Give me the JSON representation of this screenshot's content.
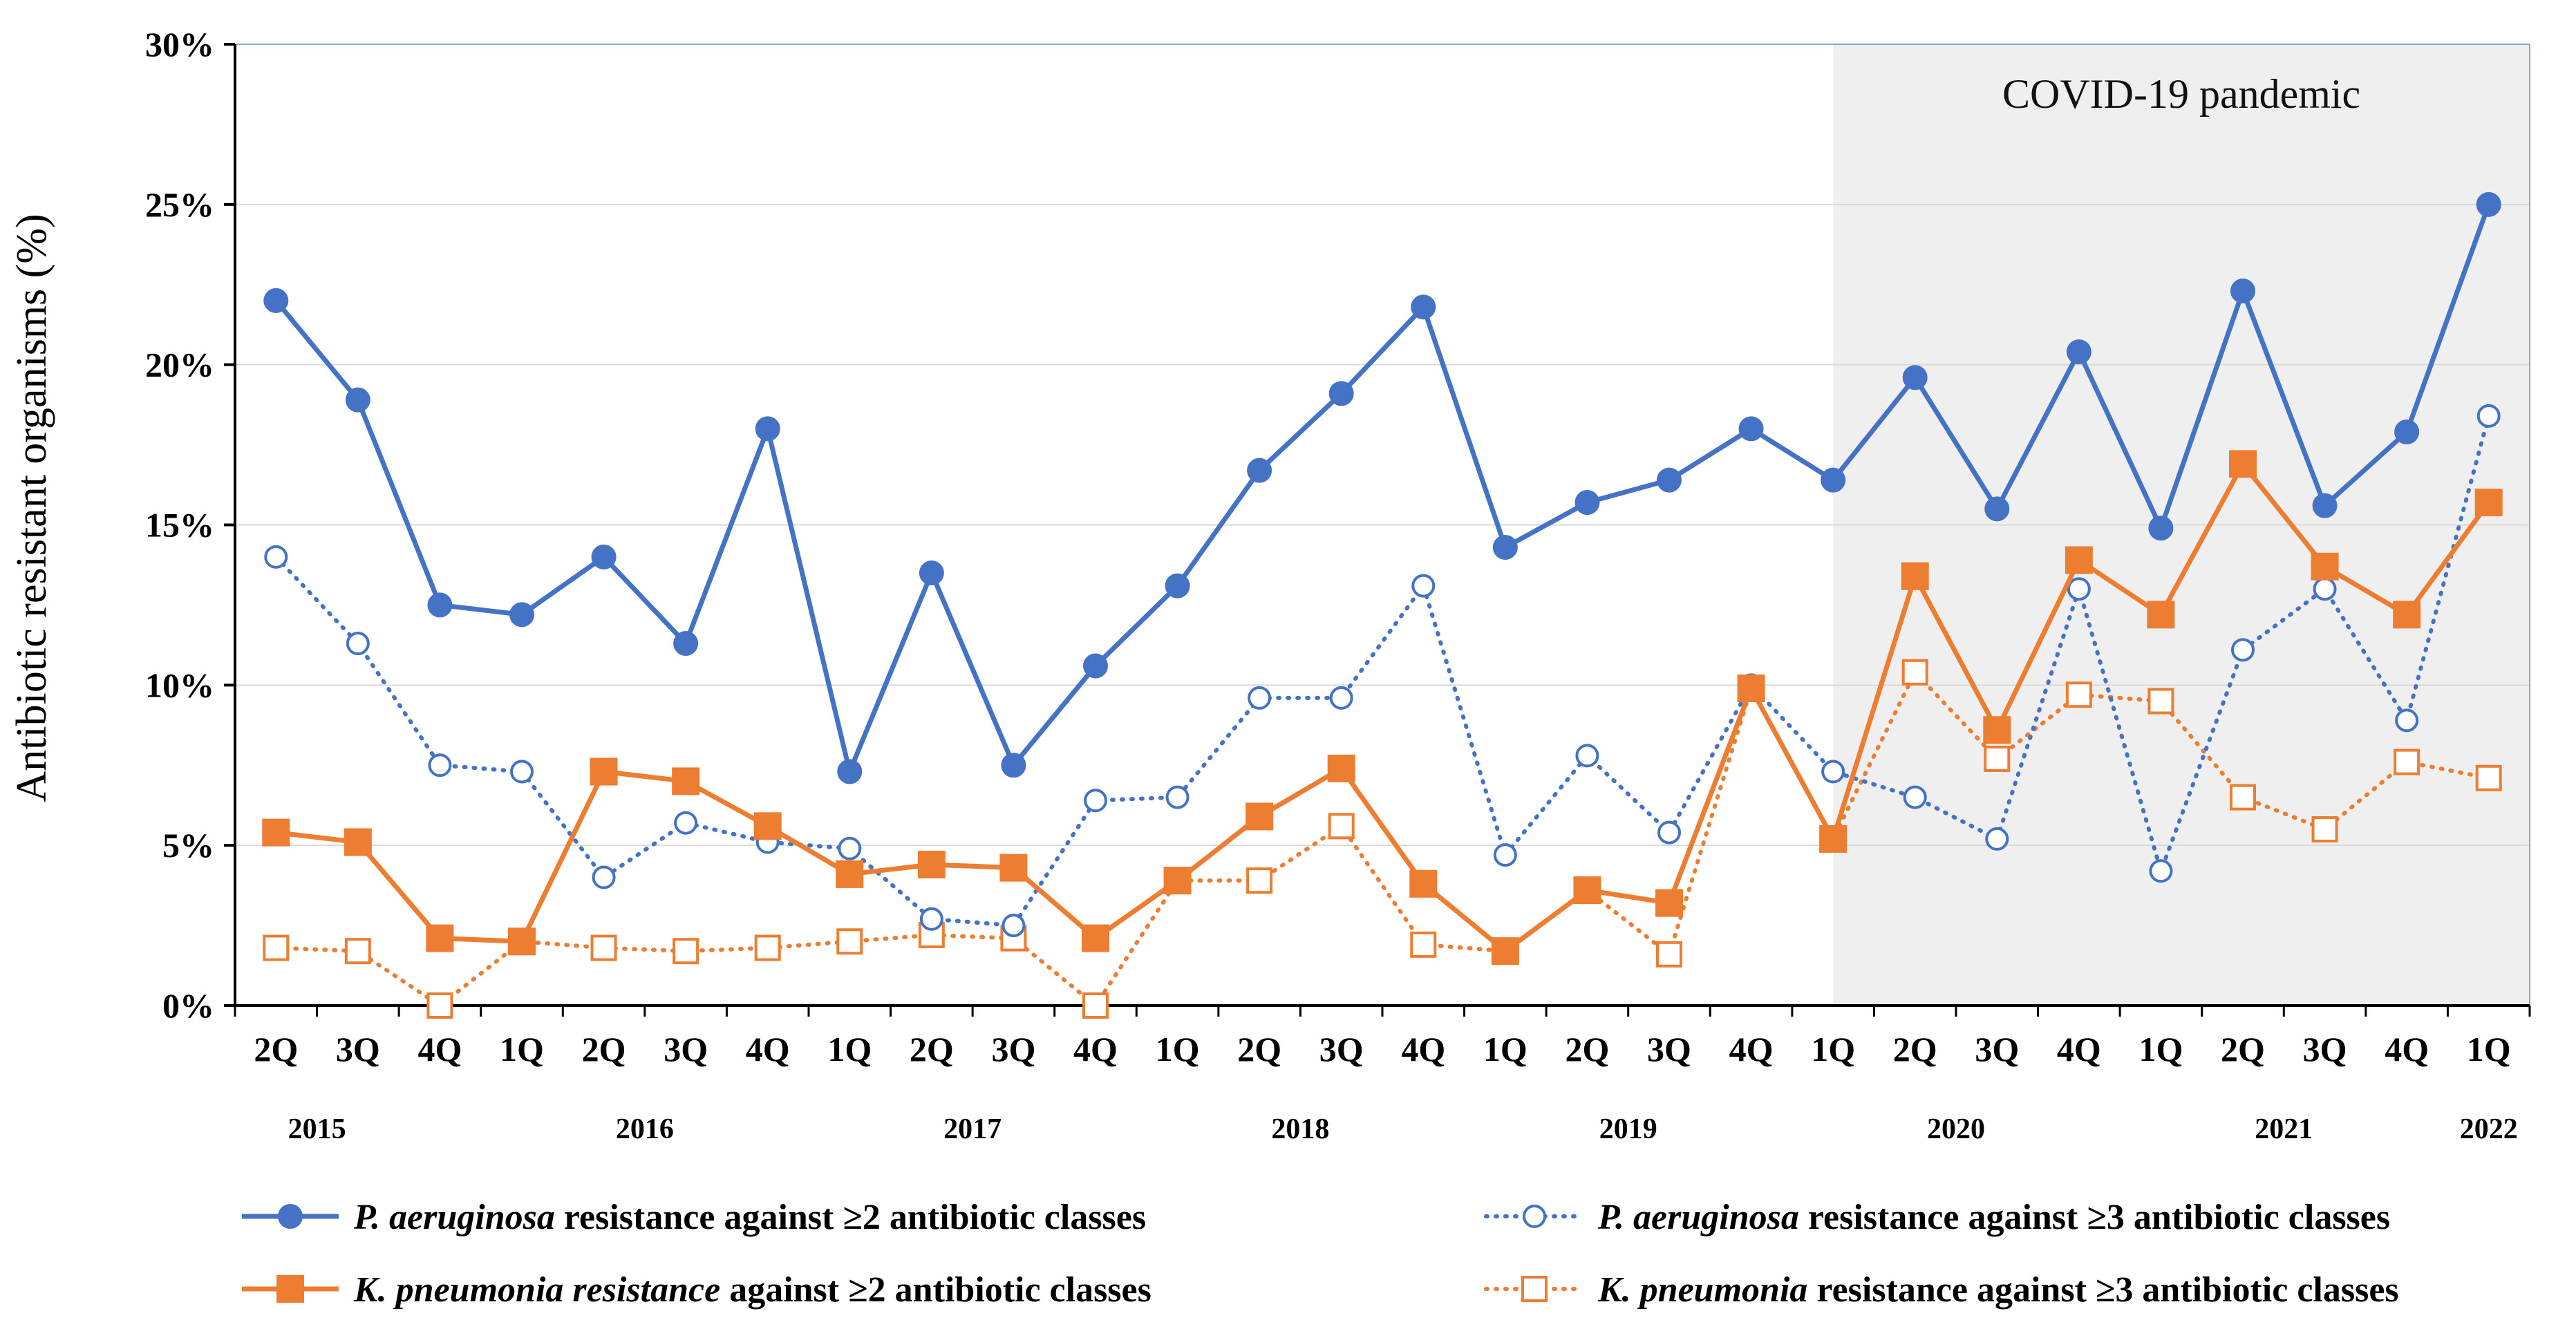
{
  "chart_data": {
    "type": "line",
    "ylabel": "Antibiotic resistant organisms (%)",
    "ylim": [
      0,
      30
    ],
    "yticks": [
      0,
      5,
      10,
      15,
      20,
      25,
      30
    ],
    "ytick_labels": [
      "0%",
      "5%",
      "10%",
      "15%",
      "20%",
      "25%",
      "30%"
    ],
    "categories": [
      "2Q",
      "3Q",
      "4Q",
      "1Q",
      "2Q",
      "3Q",
      "4Q",
      "1Q",
      "2Q",
      "3Q",
      "4Q",
      "1Q",
      "2Q",
      "3Q",
      "4Q",
      "1Q",
      "2Q",
      "3Q",
      "4Q",
      "1Q",
      "2Q",
      "3Q",
      "4Q",
      "1Q",
      "2Q",
      "3Q",
      "4Q",
      "1Q"
    ],
    "years": [
      {
        "label": "2015",
        "at": 0.5
      },
      {
        "label": "2016",
        "at": 4.5
      },
      {
        "label": "2017",
        "at": 8.5
      },
      {
        "label": "2018",
        "at": 12.5
      },
      {
        "label": "2019",
        "at": 16.5
      },
      {
        "label": "2020",
        "at": 20.5
      },
      {
        "label": "2021",
        "at": 24.5
      },
      {
        "label": "2022",
        "at": 27
      }
    ],
    "shaded_region": {
      "label": "COVID-19 pandemic",
      "from_index": 19.5,
      "to_index": 27.5
    },
    "series": [
      {
        "name": "P. aeruginosa resistance against ≥2 antibiotic classes",
        "legend_italic": "P. aeruginosa",
        "legend_rest": " resistance against ≥2 antibiotic classes",
        "color": "#4472C4",
        "line": "solid",
        "marker": "filled-circle",
        "values": [
          22.0,
          18.9,
          12.5,
          12.2,
          14.0,
          11.3,
          18.0,
          7.3,
          13.5,
          7.5,
          10.6,
          13.1,
          16.7,
          19.1,
          21.8,
          14.3,
          15.7,
          16.4,
          18.0,
          16.4,
          19.6,
          15.5,
          20.4,
          14.9,
          22.3,
          15.6,
          17.9,
          25.0
        ]
      },
      {
        "name": "P. aeruginosa resistance against ≥3 antibiotic classes",
        "legend_italic": "P. aeruginosa",
        "legend_rest": " resistance against ≥3 antibiotic classes",
        "color": "#4472C4",
        "line": "dotted",
        "marker": "open-circle",
        "values": [
          14.0,
          11.3,
          7.5,
          7.3,
          4.0,
          5.7,
          5.1,
          4.9,
          2.7,
          2.5,
          6.4,
          6.5,
          9.6,
          9.6,
          13.1,
          4.7,
          7.8,
          5.4,
          10.0,
          7.3,
          6.5,
          5.2,
          13.0,
          4.2,
          11.1,
          13.0,
          8.9,
          18.4
        ]
      },
      {
        "name": "K. pneumonia resistance against ≥2 antibiotic classes",
        "legend_italic": "K. pneumonia resistance",
        "legend_rest": " against ≥2 antibiotic classes",
        "color": "#ED7D31",
        "line": "solid",
        "marker": "filled-square",
        "values": [
          5.4,
          5.1,
          2.1,
          2.0,
          7.3,
          7.0,
          5.6,
          4.1,
          4.4,
          4.3,
          2.1,
          3.9,
          5.9,
          7.4,
          3.8,
          1.7,
          3.6,
          3.2,
          9.9,
          5.2,
          13.4,
          8.6,
          13.9,
          12.2,
          16.9,
          13.7,
          12.2,
          15.7
        ]
      },
      {
        "name": "K. pneumonia resistance against ≥3 antibiotic classes",
        "legend_italic": "K. pneumonia",
        "legend_rest": " resistance against ≥3 antibiotic classes",
        "color": "#ED7D31",
        "line": "dotted",
        "marker": "open-square",
        "values": [
          1.8,
          1.7,
          0.0,
          2.0,
          1.8,
          1.7,
          1.8,
          2.0,
          2.2,
          2.1,
          0.0,
          3.9,
          3.9,
          5.6,
          1.9,
          1.7,
          3.6,
          1.6,
          9.9,
          5.2,
          10.4,
          7.7,
          9.7,
          9.5,
          6.5,
          5.5,
          7.6,
          7.1
        ]
      }
    ]
  }
}
